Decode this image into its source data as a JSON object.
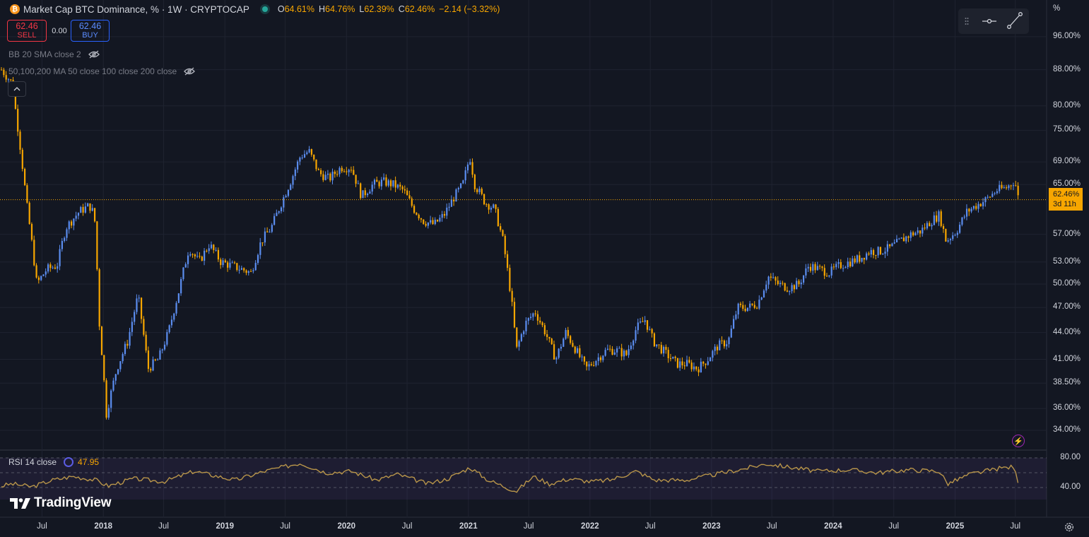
{
  "header": {
    "title": "Market Cap BTC Dominance, % · 1W · CRYPTOCAP",
    "ohlc": [
      {
        "key": "O",
        "value": "64.61%"
      },
      {
        "key": "H",
        "value": "64.76%"
      },
      {
        "key": "L",
        "value": "62.39%"
      },
      {
        "key": "C",
        "value": "62.46%"
      },
      {
        "key": "",
        "value": "−2.14 (−3.32%)"
      }
    ]
  },
  "trade": {
    "sell_price": "62.46",
    "sell_label": "SELL",
    "spread": "0.00",
    "buy_price": "62.46",
    "buy_label": "BUY"
  },
  "indicators": {
    "bb": "BB 20 SMA close 2",
    "ma": "50,100,200 MA 50 close 100 close 200 close",
    "rsi_label": "RSI 14 close",
    "rsi_value": "47.95"
  },
  "price_axis": {
    "unit": "%",
    "labels": [
      "96.00%",
      "88.00%",
      "80.00%",
      "75.00%",
      "69.00%",
      "65.00%",
      "57.00%",
      "53.00%",
      "50.00%",
      "47.00%",
      "44.00%",
      "41.00%",
      "38.50%",
      "36.00%",
      "34.00%"
    ],
    "current_price": "62.46%",
    "countdown": "3d 11h"
  },
  "rsi_axis": {
    "labels": [
      "80.00",
      "40.00"
    ]
  },
  "time_axis": {
    "labels": [
      {
        "t": "Jul",
        "year": false
      },
      {
        "t": "2018",
        "year": true
      },
      {
        "t": "Jul",
        "year": false
      },
      {
        "t": "2019",
        "year": true
      },
      {
        "t": "Jul",
        "year": false
      },
      {
        "t": "2020",
        "year": true
      },
      {
        "t": "Jul",
        "year": false
      },
      {
        "t": "2021",
        "year": true
      },
      {
        "t": "Jul",
        "year": false
      },
      {
        "t": "2022",
        "year": true
      },
      {
        "t": "Jul",
        "year": false
      },
      {
        "t": "2023",
        "year": true
      },
      {
        "t": "Jul",
        "year": false
      },
      {
        "t": "2024",
        "year": true
      },
      {
        "t": "Jul",
        "year": false
      },
      {
        "t": "2025",
        "year": true
      },
      {
        "t": "Jul",
        "year": false
      }
    ]
  },
  "branding": {
    "logo_text": "TradingView"
  },
  "colors": {
    "bg": "#131722",
    "up": "#5b8def",
    "down": "#f7a600",
    "rsi": "#b8954a",
    "text": "#d1d4dc",
    "accent": "#f7a600"
  },
  "chart_data": {
    "type": "candlestick",
    "title": "Market Cap BTC Dominance, %",
    "interval": "1W",
    "scale": "log",
    "ylim": [
      33,
      100
    ],
    "x_range": [
      "2017-03",
      "2025-07"
    ],
    "grid": true,
    "series": [
      {
        "name": "BTC Dominance",
        "points": [
          [
            "2017-03-01",
            88.0
          ],
          [
            "2017-04-01",
            85.0
          ],
          [
            "2017-05-15",
            62.0
          ],
          [
            "2017-06-15",
            50.0
          ],
          [
            "2017-07-15",
            52.0
          ],
          [
            "2017-08-15",
            52.5
          ],
          [
            "2017-09-10",
            58.0
          ],
          [
            "2017-10-20",
            60.5
          ],
          [
            "2017-11-20",
            61.5
          ],
          [
            "2017-12-05",
            60.0
          ],
          [
            "2017-12-20",
            45.0
          ],
          [
            "2018-01-10",
            35.5
          ],
          [
            "2018-02-10",
            40.0
          ],
          [
            "2018-03-15",
            43.0
          ],
          [
            "2018-04-15",
            48.5
          ],
          [
            "2018-05-15",
            40.0
          ],
          [
            "2018-06-15",
            41.0
          ],
          [
            "2018-07-15",
            44.0
          ],
          [
            "2018-08-15",
            49.0
          ],
          [
            "2018-09-15",
            55.0
          ],
          [
            "2018-10-15",
            53.0
          ],
          [
            "2018-11-15",
            55.5
          ],
          [
            "2018-12-20",
            53.0
          ],
          [
            "2019-01-20",
            52.5
          ],
          [
            "2019-02-20",
            52.0
          ],
          [
            "2019-03-20",
            51.5
          ],
          [
            "2019-04-20",
            56.0
          ],
          [
            "2019-05-20",
            58.0
          ],
          [
            "2019-06-20",
            62.0
          ],
          [
            "2019-07-20",
            66.0
          ],
          [
            "2019-08-15",
            70.0
          ],
          [
            "2019-09-10",
            71.0
          ],
          [
            "2019-10-10",
            67.0
          ],
          [
            "2019-11-10",
            66.0
          ],
          [
            "2019-12-15",
            68.0
          ],
          [
            "2020-01-15",
            68.0
          ],
          [
            "2020-02-15",
            63.0
          ],
          [
            "2020-03-20",
            65.0
          ],
          [
            "2020-04-20",
            65.5
          ],
          [
            "2020-05-20",
            65.0
          ],
          [
            "2020-06-20",
            64.0
          ],
          [
            "2020-07-20",
            61.0
          ],
          [
            "2020-08-20",
            59.0
          ],
          [
            "2020-09-20",
            58.5
          ],
          [
            "2020-10-20",
            60.0
          ],
          [
            "2020-11-20",
            63.0
          ],
          [
            "2020-12-15",
            65.0
          ],
          [
            "2021-01-05",
            70.0
          ],
          [
            "2021-01-20",
            65.0
          ],
          [
            "2021-02-20",
            62.0
          ],
          [
            "2021-03-20",
            61.0
          ],
          [
            "2021-04-15",
            56.0
          ],
          [
            "2021-05-10",
            48.0
          ],
          [
            "2021-05-25",
            42.0
          ],
          [
            "2021-06-20",
            45.0
          ],
          [
            "2021-07-20",
            46.5
          ],
          [
            "2021-08-20",
            44.0
          ],
          [
            "2021-09-20",
            41.0
          ],
          [
            "2021-10-20",
            44.0
          ],
          [
            "2021-11-20",
            42.0
          ],
          [
            "2021-12-20",
            40.0
          ],
          [
            "2022-01-20",
            41.0
          ],
          [
            "2022-02-20",
            42.0
          ],
          [
            "2022-03-20",
            42.0
          ],
          [
            "2022-04-20",
            41.5
          ],
          [
            "2022-05-20",
            44.5
          ],
          [
            "2022-06-15",
            45.5
          ],
          [
            "2022-07-10",
            43.0
          ],
          [
            "2022-08-20",
            41.5
          ],
          [
            "2022-09-20",
            40.5
          ],
          [
            "2022-10-20",
            40.5
          ],
          [
            "2022-11-20",
            40.0
          ],
          [
            "2022-12-20",
            41.0
          ],
          [
            "2023-01-20",
            42.5
          ],
          [
            "2023-02-20",
            43.0
          ],
          [
            "2023-03-20",
            47.0
          ],
          [
            "2023-04-20",
            47.0
          ],
          [
            "2023-05-20",
            47.5
          ],
          [
            "2023-06-20",
            51.0
          ],
          [
            "2023-07-20",
            50.0
          ],
          [
            "2023-08-20",
            49.5
          ],
          [
            "2023-09-20",
            50.0
          ],
          [
            "2023-10-20",
            52.5
          ],
          [
            "2023-11-20",
            52.0
          ],
          [
            "2023-12-20",
            51.5
          ],
          [
            "2024-01-20",
            52.5
          ],
          [
            "2024-02-20",
            53.0
          ],
          [
            "2024-03-20",
            53.5
          ],
          [
            "2024-04-20",
            54.5
          ],
          [
            "2024-05-20",
            54.5
          ],
          [
            "2024-06-20",
            55.0
          ],
          [
            "2024-07-20",
            56.0
          ],
          [
            "2024-08-20",
            57.0
          ],
          [
            "2024-09-20",
            57.5
          ],
          [
            "2024-10-20",
            59.0
          ],
          [
            "2024-11-15",
            60.0
          ],
          [
            "2024-12-05",
            56.0
          ],
          [
            "2025-01-05",
            57.5
          ],
          [
            "2025-02-05",
            60.5
          ],
          [
            "2025-03-05",
            61.5
          ],
          [
            "2025-04-05",
            62.5
          ],
          [
            "2025-05-05",
            64.0
          ],
          [
            "2025-06-05",
            64.5
          ],
          [
            "2025-06-25",
            65.5
          ],
          [
            "2025-07-05",
            64.6
          ],
          [
            "2025-07-10",
            62.46
          ]
        ]
      },
      {
        "name": "RSI 14 close",
        "points": [
          [
            "2017-03-01",
            42
          ],
          [
            "2017-04-01",
            45
          ],
          [
            "2017-06-01",
            41
          ],
          [
            "2017-08-01",
            50
          ],
          [
            "2017-10-01",
            55
          ],
          [
            "2017-12-10",
            50
          ],
          [
            "2018-01-15",
            42
          ],
          [
            "2018-04-01",
            52
          ],
          [
            "2018-07-01",
            48
          ],
          [
            "2018-10-01",
            62
          ],
          [
            "2018-12-01",
            56
          ],
          [
            "2019-02-01",
            50
          ],
          [
            "2019-05-01",
            62
          ],
          [
            "2019-08-15",
            73
          ],
          [
            "2019-11-01",
            60
          ],
          [
            "2020-01-15",
            62
          ],
          [
            "2020-04-01",
            50
          ],
          [
            "2020-06-01",
            58
          ],
          [
            "2020-09-01",
            45
          ],
          [
            "2020-11-01",
            52
          ],
          [
            "2021-01-05",
            67
          ],
          [
            "2021-03-01",
            50
          ],
          [
            "2021-05-25",
            35
          ],
          [
            "2021-07-15",
            55
          ],
          [
            "2021-09-01",
            45
          ],
          [
            "2021-11-01",
            52
          ],
          [
            "2022-01-01",
            48
          ],
          [
            "2022-03-01",
            50
          ],
          [
            "2022-05-20",
            62
          ],
          [
            "2022-07-15",
            50
          ],
          [
            "2022-10-15",
            50
          ],
          [
            "2023-01-15",
            58
          ],
          [
            "2023-04-15",
            66
          ],
          [
            "2023-06-15",
            72
          ],
          [
            "2023-09-15",
            66
          ],
          [
            "2023-11-15",
            62
          ],
          [
            "2024-02-15",
            64
          ],
          [
            "2024-05-15",
            60
          ],
          [
            "2024-08-15",
            64
          ],
          [
            "2024-11-15",
            62
          ],
          [
            "2024-12-10",
            45
          ],
          [
            "2025-02-15",
            58
          ],
          [
            "2025-05-15",
            66
          ],
          [
            "2025-06-25",
            68
          ],
          [
            "2025-07-10",
            47.95
          ]
        ]
      }
    ],
    "rsi_bands": [
      80,
      40
    ]
  }
}
